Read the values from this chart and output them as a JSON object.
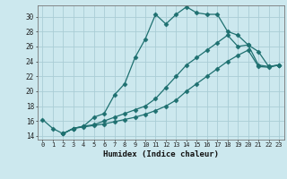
{
  "xlabel": "Humidex (Indice chaleur)",
  "bg_color": "#cce8ee",
  "grid_color": "#aacdd5",
  "line_color": "#1e7070",
  "xlim": [
    -0.5,
    23.5
  ],
  "ylim": [
    13.5,
    31.5
  ],
  "xticks": [
    0,
    1,
    2,
    3,
    4,
    5,
    6,
    7,
    8,
    9,
    10,
    11,
    12,
    13,
    14,
    15,
    16,
    17,
    18,
    19,
    20,
    21,
    22,
    23
  ],
  "yticks": [
    14,
    16,
    18,
    20,
    22,
    24,
    26,
    28,
    30
  ],
  "line1_x": [
    0,
    1,
    2,
    3,
    4,
    5,
    6,
    7,
    8,
    9,
    10,
    11,
    12,
    13,
    14,
    15,
    16,
    17,
    18,
    19,
    20,
    21,
    22,
    23
  ],
  "line1_y": [
    16.2,
    15.0,
    14.3,
    15.0,
    15.3,
    16.5,
    17.0,
    19.5,
    21.0,
    24.5,
    27.0,
    30.3,
    29.0,
    30.3,
    31.3,
    30.5,
    30.3,
    30.3,
    28.0,
    27.5,
    26.2,
    25.3,
    23.3,
    23.5
  ],
  "line2_x": [
    2,
    3,
    4,
    5,
    6,
    7,
    8,
    9,
    10,
    11,
    12,
    13,
    14,
    15,
    16,
    17,
    18,
    19,
    20,
    21,
    22,
    23
  ],
  "line2_y": [
    14.3,
    15.0,
    15.3,
    15.5,
    16.0,
    16.5,
    17.0,
    17.5,
    18.0,
    19.0,
    20.5,
    22.0,
    23.5,
    24.5,
    25.5,
    26.5,
    27.5,
    26.0,
    26.2,
    23.5,
    23.3,
    23.5
  ],
  "line3_x": [
    2,
    3,
    4,
    5,
    6,
    7,
    8,
    9,
    10,
    11,
    12,
    13,
    14,
    15,
    16,
    17,
    18,
    19,
    20,
    21,
    22,
    23
  ],
  "line3_y": [
    14.3,
    15.0,
    15.2,
    15.4,
    15.6,
    15.9,
    16.2,
    16.5,
    16.9,
    17.4,
    18.0,
    18.8,
    20.0,
    21.0,
    22.0,
    23.0,
    24.0,
    24.8,
    25.5,
    23.3,
    23.2,
    23.5
  ]
}
